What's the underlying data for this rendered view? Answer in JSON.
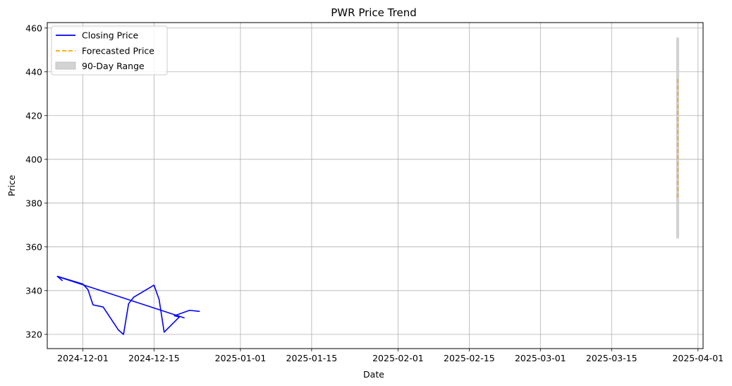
{
  "chart_data": {
    "type": "line",
    "title": "PWR Price Trend",
    "xlabel": "Date",
    "ylabel": "Price",
    "xlim": [
      "2024-11-24",
      "2025-04-02"
    ],
    "ylim": [
      313.5,
      462.5
    ],
    "x_ticks": [
      "2024-12-01",
      "2024-12-15",
      "2025-01-01",
      "2025-01-15",
      "2025-02-01",
      "2025-02-15",
      "2025-03-01",
      "2025-03-15",
      "2025-04-01"
    ],
    "y_ticks": [
      320,
      340,
      360,
      380,
      400,
      420,
      440,
      460
    ],
    "grid": true,
    "legend": {
      "placement": "top-left",
      "entries": [
        "Closing Price",
        "Forecasted Price",
        "90-Day Range"
      ]
    },
    "colors": {
      "closing": "#0000ff",
      "forecast": "#ffa500",
      "range": "#c8c8c8"
    },
    "series": [
      {
        "name": "Closing Price",
        "style": "solid",
        "points": [
          [
            "2024-11-27",
            344.5
          ],
          [
            "2024-11-26",
            346.5
          ],
          [
            "2024-12-01",
            343.0
          ],
          [
            "2024-12-02",
            340.5
          ],
          [
            "2024-12-03",
            333.5
          ],
          [
            "2024-12-05",
            332.5
          ],
          [
            "2024-12-08",
            322.0
          ],
          [
            "2024-12-09",
            320.0
          ],
          [
            "2024-12-10",
            334.0
          ],
          [
            "2024-12-11",
            337.0
          ],
          [
            "2024-12-15",
            342.5
          ],
          [
            "2024-12-16",
            336.0
          ],
          [
            "2024-12-17",
            321.0
          ],
          [
            "2024-12-20",
            328.0
          ],
          [
            "2024-12-19",
            328.5
          ],
          [
            "2024-12-22",
            331.0
          ],
          [
            "2024-12-24",
            330.5
          ]
        ]
      },
      {
        "name": "Closing Price (return)",
        "style": "solid",
        "points": [
          [
            "2024-11-26",
            346.5
          ],
          [
            "2024-12-21",
            327.5
          ]
        ]
      },
      {
        "name": "Forecasted Price",
        "style": "dashed",
        "points": [
          [
            "2025-03-28",
            382.5
          ],
          [
            "2025-03-28",
            437.5
          ]
        ]
      }
    ],
    "range": {
      "name": "90-Day Range",
      "date": "2025-03-28",
      "low": 364.0,
      "high": 455.5
    }
  }
}
